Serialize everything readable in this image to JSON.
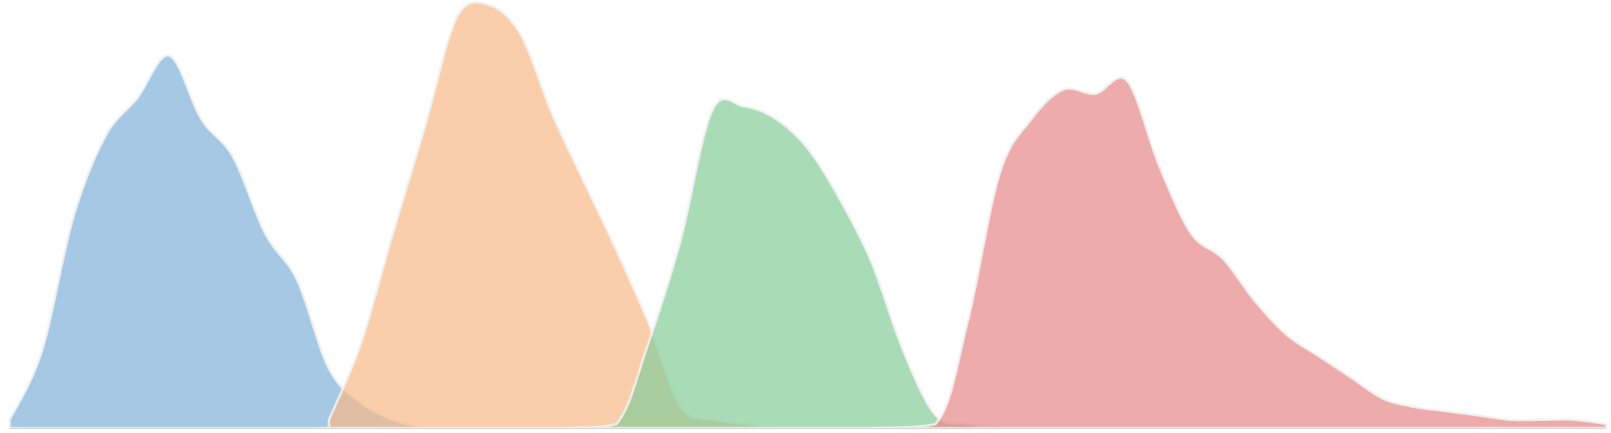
{
  "chart_data": {
    "type": "area",
    "title": "",
    "xlabel": "",
    "ylabel": "",
    "grid": false,
    "legend": "none",
    "xlim": [
      0,
      100
    ],
    "ylim": [
      0,
      1
    ],
    "series": [
      {
        "color": "#7fb2d8",
        "x": [
          0,
          2,
          4,
          6,
          8,
          10,
          12,
          14,
          16,
          18,
          20,
          22,
          24,
          26
        ],
        "values": [
          0.02,
          0.18,
          0.5,
          0.69,
          0.78,
          0.88,
          0.73,
          0.64,
          0.46,
          0.35,
          0.14,
          0.06,
          0.02,
          0.0
        ]
      },
      {
        "color": "#f9b987",
        "x": [
          20,
          22,
          24,
          26,
          28,
          30,
          32,
          34,
          36,
          38,
          40,
          42,
          44,
          46,
          48
        ],
        "values": [
          0.02,
          0.2,
          0.46,
          0.71,
          0.97,
          1.0,
          0.93,
          0.74,
          0.58,
          0.42,
          0.25,
          0.05,
          0.02,
          0.01,
          0.0
        ]
      },
      {
        "color": "#86cc99",
        "x": [
          35,
          38,
          40,
          42,
          44,
          46,
          48,
          50,
          52,
          54,
          56,
          58,
          60,
          62
        ],
        "values": [
          0.0,
          0.01,
          0.2,
          0.44,
          0.75,
          0.76,
          0.73,
          0.66,
          0.54,
          0.39,
          0.18,
          0.03,
          0.01,
          0.0
        ]
      },
      {
        "color": "#e78888",
        "x": [
          54,
          58,
          60,
          62,
          64,
          66,
          68,
          70,
          72,
          74,
          76,
          78,
          80,
          82,
          84,
          86,
          88,
          90,
          92,
          94,
          96,
          98,
          100
        ],
        "values": [
          0.0,
          0.01,
          0.25,
          0.6,
          0.73,
          0.8,
          0.79,
          0.82,
          0.62,
          0.46,
          0.4,
          0.3,
          0.22,
          0.17,
          0.12,
          0.07,
          0.05,
          0.04,
          0.03,
          0.02,
          0.02,
          0.02,
          0.01
        ]
      }
    ]
  }
}
